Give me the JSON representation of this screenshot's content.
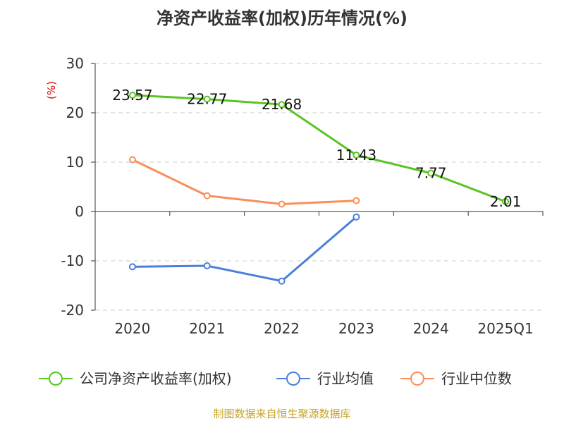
{
  "chart_data": {
    "type": "line",
    "title": "净资产收益率(加权)历年情况(%)",
    "ylabel": "(%)",
    "xlabel": "",
    "categories": [
      "2020",
      "2021",
      "2022",
      "2023",
      "2024",
      "2025Q1"
    ],
    "ylim": [
      -20,
      30
    ],
    "yticks": [
      30,
      20,
      10,
      0,
      -10,
      -20
    ],
    "ytick_labels": [
      "30",
      "20",
      "10",
      "0",
      "-10",
      "-20"
    ],
    "grid": true,
    "legend_position": "bottom",
    "series": [
      {
        "name": "公司净资产收益率(加权)",
        "color": "#5ac421",
        "values": [
          23.57,
          22.77,
          21.68,
          11.43,
          7.77,
          2.01
        ],
        "labels": [
          "23.57",
          "22.77",
          "21.68",
          "11.43",
          "7.77",
          "2.01"
        ],
        "show_labels": true
      },
      {
        "name": "行业均值",
        "color": "#4c7fdb",
        "values": [
          -11.2,
          -11.0,
          -14.1,
          -1.1,
          null,
          null
        ],
        "show_labels": false
      },
      {
        "name": "行业中位数",
        "color": "#f98e5a",
        "values": [
          10.5,
          3.2,
          1.5,
          2.2,
          null,
          null
        ],
        "show_labels": false
      }
    ]
  },
  "source_text": "制图数据来自恒生聚源数据库"
}
